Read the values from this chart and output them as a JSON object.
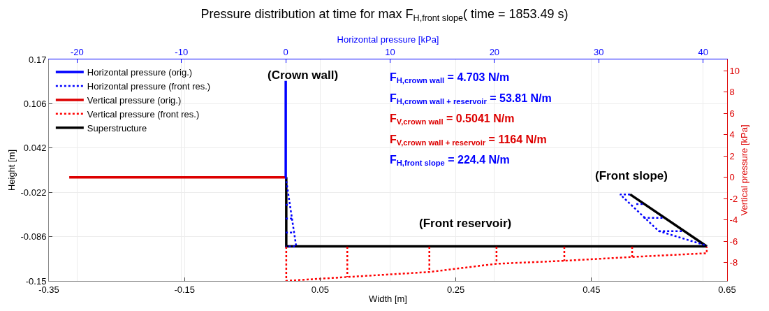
{
  "chart_data": {
    "type": "line",
    "title": "Pressure distribution at time for max F$_{H,front slope}$( time = 1853.49 s)",
    "xlabel": "Width [m]",
    "ylabel": "Height [m]",
    "x2label": "Horizontal pressure [kPa]",
    "y2label": "Vertical pressure [kPa]",
    "xlim": [
      -0.35,
      0.65
    ],
    "xticks": [
      -0.35,
      -0.15,
      0.05,
      0.25,
      0.45,
      0.65
    ],
    "ylim": [
      -0.15,
      0.17
    ],
    "yticks": [
      -0.15,
      -0.086,
      -0.022,
      0.042,
      0.106,
      0.17
    ],
    "x2lim": [
      -22.7,
      42.3
    ],
    "x2ticks": [
      -20,
      -10,
      0,
      10,
      20,
      30,
      40
    ],
    "y2lim": [
      -9.71,
      11.06
    ],
    "y2ticks": [
      -8,
      -6,
      -4,
      -2,
      0,
      2,
      4,
      6,
      8,
      10
    ],
    "grid": true,
    "legend": "top left",
    "series": [
      {
        "name": "Horizontal pressure (orig.)",
        "color": "#0000ff",
        "line_style": "solid",
        "axis": "x2",
        "x": [
          0,
          0
        ],
        "values": [
          0.139,
          0.0
        ]
      },
      {
        "name": "Horizontal pressure (front res.)",
        "color": "#0000ff",
        "line_style": "dotted",
        "axis": "x2",
        "x": [
          0,
          1.0,
          0,
          null,
          0,
          0.4,
          null,
          0,
          0.6,
          null,
          0,
          0.8,
          null,
          33.0,
          32.05,
          35.75,
          40.35,
          null,
          33.6,
          34.2,
          null,
          34.3,
          36.2,
          null,
          35.75,
          38.1
        ],
        "values": [
          0.0,
          -0.1,
          -0.1,
          null,
          -0.04,
          -0.04,
          null,
          -0.06,
          -0.06,
          null,
          -0.08,
          -0.08,
          null,
          -0.025,
          -0.025,
          -0.078,
          -0.099,
          null,
          -0.039,
          -0.039,
          null,
          -0.059,
          -0.059,
          null,
          -0.078,
          -0.078
        ]
      },
      {
        "name": "Vertical pressure (orig.)",
        "color": "#dd0000",
        "line_style": "solid",
        "axis": "y2",
        "x": [
          -0.32,
          0
        ],
        "values": [
          0,
          0
        ]
      },
      {
        "name": "Vertical pressure (front res.)",
        "color": "#ff0000",
        "line_style": "dotted",
        "axis": "y2",
        "x": [
          0,
          0,
          0.09,
          0.211,
          0.31,
          0.41,
          0.51,
          0.62,
          0.62,
          null,
          0.09,
          0.09,
          null,
          0.211,
          0.211,
          null,
          0.31,
          0.31,
          null,
          0.41,
          0.41,
          null,
          0.51,
          0.51
        ],
        "values": [
          -6.5,
          -9.7,
          -9.34,
          -8.87,
          -8.1,
          -7.82,
          -7.46,
          -7.11,
          -6.5,
          null,
          -6.5,
          -9.34,
          null,
          -6.5,
          -8.87,
          null,
          -6.5,
          -8.1,
          null,
          -6.5,
          -7.82,
          null,
          -6.5,
          -7.46
        ]
      },
      {
        "name": "Superstructure",
        "color": "#000000",
        "line_style": "solid",
        "x": [
          0,
          0,
          0.62,
          0.507
        ],
        "values": [
          0.0,
          -0.1,
          -0.1,
          -0.025
        ]
      }
    ],
    "annotations": [
      "(Crown wall)",
      "(Front reservoir)",
      "(Front slope)",
      "F$_{H,crown wall}$ = 4.703 N/m",
      "F$_{H,crown wall + reservoir}$ = 53.81 N/m",
      "F$_{V,crown wall}$ = 0.5041 N/m",
      "F$_{V,crown wall + reservoir}$ = 1164 N/m",
      "F$_{H,front slope}$ = 224.4 N/m"
    ]
  }
}
